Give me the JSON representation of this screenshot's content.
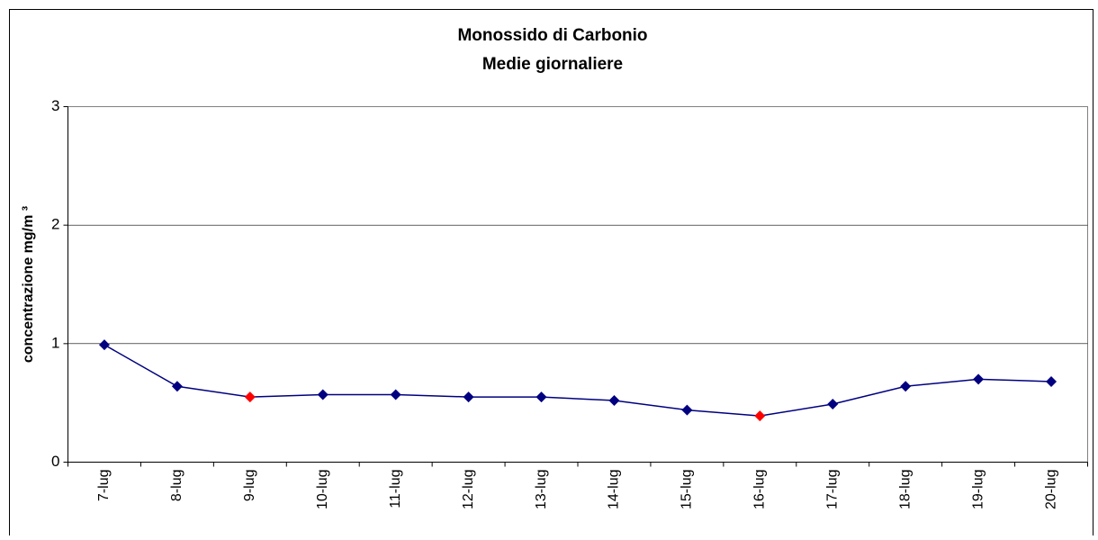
{
  "chart_data": {
    "type": "line",
    "title": "Monossido di Carbonio",
    "subtitle": "Medie giornaliere",
    "y_label": "concentrazione mg/m ³",
    "categories": [
      "7-lug",
      "8-lug",
      "9-lug",
      "10-lug",
      "11-lug",
      "12-lug",
      "13-lug",
      "14-lug",
      "15-lug",
      "16-lug",
      "17-lug",
      "18-lug",
      "19-lug",
      "20-lug"
    ],
    "series": [
      {
        "name": "Monossido di Carbonio",
        "color": "#000080",
        "values": [
          0.99,
          0.64,
          0.55,
          0.57,
          0.57,
          0.55,
          0.55,
          0.52,
          0.44,
          0.39,
          0.49,
          0.64,
          0.7,
          0.68
        ],
        "marker_colors": [
          "#000080",
          "#000080",
          "#ff0000",
          "#000080",
          "#000080",
          "#000080",
          "#000080",
          "#000080",
          "#000080",
          "#ff0000",
          "#000080",
          "#000080",
          "#000080",
          "#000080"
        ]
      }
    ],
    "ylim": [
      0,
      3
    ],
    "yticks": [
      0,
      1,
      2,
      3
    ],
    "grid": true,
    "legend": false
  }
}
